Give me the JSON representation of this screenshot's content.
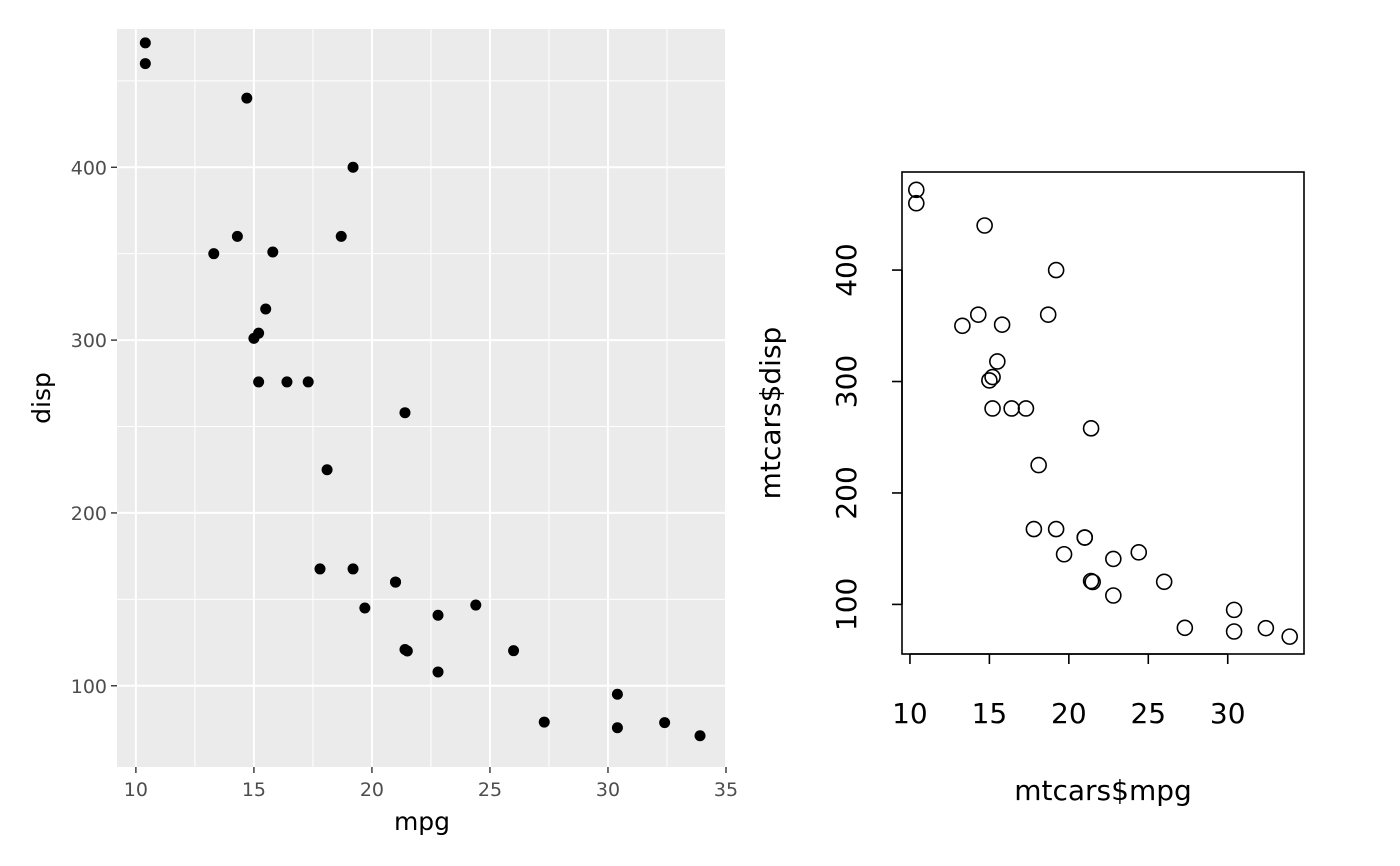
{
  "chart_data": [
    {
      "type": "scatter",
      "style": "ggplot",
      "xlabel": "mpg",
      "ylabel": "disp",
      "xlim": [
        9.2,
        35
      ],
      "ylim": [
        53,
        480
      ],
      "xticks": [
        10,
        15,
        20,
        25,
        30,
        35
      ],
      "yticks": [
        100,
        200,
        300,
        400
      ],
      "xminor": [
        12.5,
        17.5,
        22.5,
        27.5,
        32.5
      ],
      "yminor": [
        150,
        250,
        350,
        450
      ],
      "grid": true,
      "point_color": "#000000",
      "panel_color": "#ebebeb",
      "points": [
        [
          21.0,
          160
        ],
        [
          21.0,
          160
        ],
        [
          22.8,
          108
        ],
        [
          21.4,
          258
        ],
        [
          18.7,
          360
        ],
        [
          18.1,
          225
        ],
        [
          14.3,
          360
        ],
        [
          24.4,
          146.7
        ],
        [
          22.8,
          140.8
        ],
        [
          19.2,
          167.6
        ],
        [
          17.8,
          167.6
        ],
        [
          16.4,
          275.8
        ],
        [
          17.3,
          275.8
        ],
        [
          15.2,
          275.8
        ],
        [
          10.4,
          472
        ],
        [
          10.4,
          460
        ],
        [
          14.7,
          440
        ],
        [
          32.4,
          78.7
        ],
        [
          30.4,
          75.7
        ],
        [
          33.9,
          71.1
        ],
        [
          21.5,
          120.1
        ],
        [
          15.5,
          318
        ],
        [
          15.2,
          304
        ],
        [
          13.3,
          350
        ],
        [
          19.2,
          400
        ],
        [
          27.3,
          79
        ],
        [
          26.0,
          120.3
        ],
        [
          30.4,
          95.1
        ],
        [
          15.8,
          351
        ],
        [
          19.7,
          145
        ],
        [
          15.0,
          301
        ],
        [
          21.4,
          121
        ]
      ]
    },
    {
      "type": "scatter",
      "style": "base",
      "xlabel": "mtcars$mpg",
      "ylabel": "mtcars$disp",
      "xlim": [
        9.5,
        34.8
      ],
      "ylim": [
        55.5,
        488
      ],
      "xticks": [
        10,
        15,
        20,
        25,
        30
      ],
      "yticks": [
        100,
        200,
        300,
        400
      ],
      "grid": false,
      "marker": "open-circle",
      "points": [
        [
          21.0,
          160
        ],
        [
          21.0,
          160
        ],
        [
          22.8,
          108
        ],
        [
          21.4,
          258
        ],
        [
          18.7,
          360
        ],
        [
          18.1,
          225
        ],
        [
          14.3,
          360
        ],
        [
          24.4,
          146.7
        ],
        [
          22.8,
          140.8
        ],
        [
          19.2,
          167.6
        ],
        [
          17.8,
          167.6
        ],
        [
          16.4,
          275.8
        ],
        [
          17.3,
          275.8
        ],
        [
          15.2,
          275.8
        ],
        [
          10.4,
          472
        ],
        [
          10.4,
          460
        ],
        [
          14.7,
          440
        ],
        [
          32.4,
          78.7
        ],
        [
          30.4,
          75.7
        ],
        [
          33.9,
          71.1
        ],
        [
          21.5,
          120.1
        ],
        [
          15.5,
          318
        ],
        [
          15.2,
          304
        ],
        [
          13.3,
          350
        ],
        [
          19.2,
          400
        ],
        [
          27.3,
          79
        ],
        [
          26.0,
          120.3
        ],
        [
          30.4,
          95.1
        ],
        [
          15.8,
          351
        ],
        [
          19.7,
          145
        ],
        [
          15.0,
          301
        ],
        [
          21.4,
          121
        ]
      ]
    }
  ]
}
